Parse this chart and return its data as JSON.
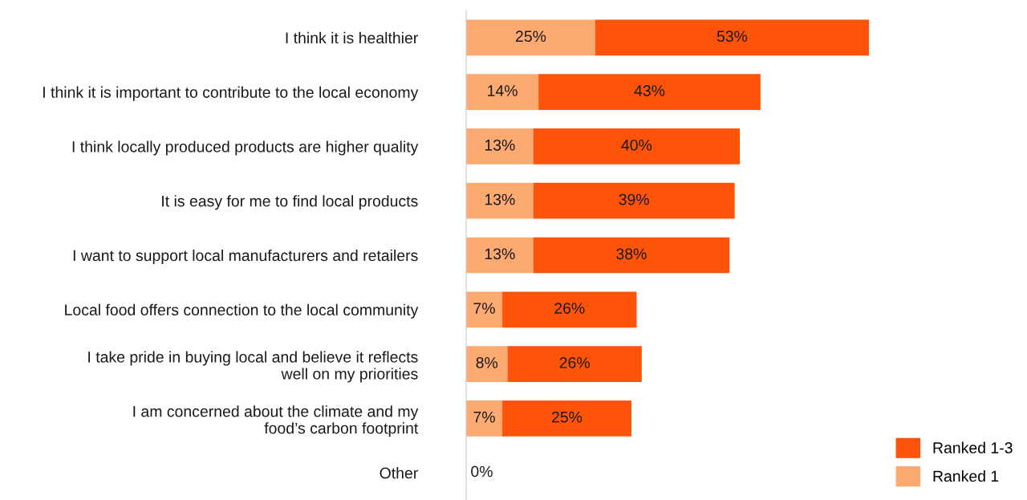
{
  "chart_data": {
    "type": "bar",
    "orientation": "horizontal",
    "stacked": true,
    "categories": [
      "I think it is healthier",
      "I think it is important to contribute to the local economy",
      "I think locally produced products are higher quality",
      "It is easy for me to find local products",
      "I want to support local manufacturers and retailers",
      "Local food offers connection to the local community",
      "I take pride in buying local and believe it reflects\nwell on my priorities",
      "I am concerned about the climate and my\nfood’s carbon footprint",
      "Other"
    ],
    "series": [
      {
        "name": "Ranked 1",
        "color": "#fdaa72",
        "values": [
          25,
          14,
          13,
          13,
          13,
          7,
          8,
          7,
          0
        ],
        "value_labels": [
          "25%",
          "14%",
          "13%",
          "13%",
          "13%",
          "7%",
          "8%",
          "7%",
          "0%"
        ]
      },
      {
        "name": "Ranked 1-3",
        "color": "#fe540a",
        "values": [
          53,
          43,
          40,
          39,
          38,
          26,
          26,
          25,
          0
        ],
        "value_labels": [
          "53%",
          "43%",
          "40%",
          "39%",
          "38%",
          "26%",
          "26%",
          "25%",
          null
        ]
      }
    ],
    "legend": "bottom right",
    "grid": false
  }
}
